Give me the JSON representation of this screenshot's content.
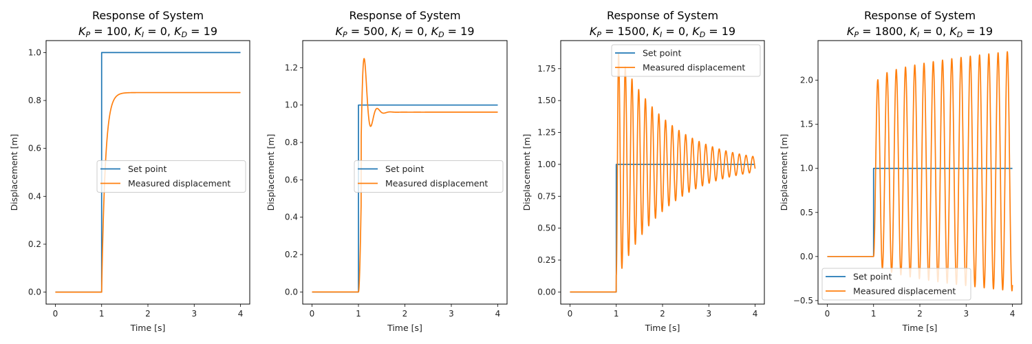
{
  "figure": {
    "colors": {
      "set_point": "#1f77b4",
      "measured": "#ff7f0e"
    }
  },
  "chart_data": [
    {
      "type": "line",
      "title": "Response of System",
      "subtitle": {
        "KP": "100",
        "KI": "0",
        "KD": "19"
      },
      "xlabel": "Time [s]",
      "ylabel": "Displacement [m]",
      "xlim": [
        -0.2,
        4.2
      ],
      "ylim": [
        -0.05,
        1.05
      ],
      "xticks": [
        0,
        1,
        2,
        3,
        4
      ],
      "xtick_labels": [
        "0",
        "1",
        "2",
        "3",
        "4"
      ],
      "yticks": [
        0.0,
        0.2,
        0.4,
        0.6,
        0.8,
        1.0
      ],
      "ytick_labels": [
        "0.0",
        "0.2",
        "0.4",
        "0.6",
        "0.8",
        "1.0"
      ],
      "legend": {
        "placement": "center-right",
        "entries": [
          "Set point",
          "Measured displacement"
        ]
      },
      "series": [
        {
          "name": "Set point",
          "kind": "step",
          "step_time": 1,
          "before": 0,
          "after": 1,
          "t_end": 4
        },
        {
          "name": "Measured displacement",
          "kind": "first_order",
          "step_time": 1,
          "final": 0.833,
          "time_constant": 0.08,
          "t_end": 4
        }
      ]
    },
    {
      "type": "line",
      "title": "Response of System",
      "subtitle": {
        "KP": "500",
        "KI": "0",
        "KD": "19"
      },
      "xlabel": "Time [s]",
      "ylabel": "Displacement [m]",
      "xlim": [
        -0.2,
        4.2
      ],
      "ylim": [
        -0.065,
        1.345
      ],
      "xticks": [
        0,
        1,
        2,
        3,
        4
      ],
      "xtick_labels": [
        "0",
        "1",
        "2",
        "3",
        "4"
      ],
      "yticks": [
        0.0,
        0.2,
        0.4,
        0.6,
        0.8,
        1.0,
        1.2
      ],
      "ytick_labels": [
        "0.0",
        "0.2",
        "0.4",
        "0.6",
        "0.8",
        "1.0",
        "1.2"
      ],
      "legend": {
        "placement": "center-right",
        "entries": [
          "Set point",
          "Measured displacement"
        ]
      },
      "series": [
        {
          "name": "Set point",
          "kind": "step",
          "step_time": 1,
          "before": 0,
          "after": 1,
          "t_end": 4
        },
        {
          "name": "Measured displacement",
          "kind": "damped",
          "step_time": 1,
          "final": 0.962,
          "peak": 1.28,
          "peak_time": 1.12,
          "period": 0.28,
          "decay": 9.5,
          "t_end": 4
        }
      ]
    },
    {
      "type": "line",
      "title": "Response of System",
      "subtitle": {
        "KP": "1500",
        "KI": "0",
        "KD": "19"
      },
      "xlabel": "Time [s]",
      "ylabel": "Displacement [m]",
      "xlim": [
        -0.2,
        4.2
      ],
      "ylim": [
        -0.095,
        1.97
      ],
      "xticks": [
        0,
        1,
        2,
        3,
        4
      ],
      "xtick_labels": [
        "0",
        "1",
        "2",
        "3",
        "4"
      ],
      "yticks": [
        0.0,
        0.25,
        0.5,
        0.75,
        1.0,
        1.25,
        1.5,
        1.75
      ],
      "ytick_labels": [
        "0.00",
        "0.25",
        "0.50",
        "0.75",
        "1.00",
        "1.25",
        "1.50",
        "1.75"
      ],
      "legend": {
        "placement": "upper-right",
        "entries": [
          "Set point",
          "Measured displacement"
        ]
      },
      "series": [
        {
          "name": "Set point",
          "kind": "step",
          "step_time": 1,
          "before": 0,
          "after": 1,
          "t_end": 4
        },
        {
          "name": "Measured displacement",
          "kind": "oscillating",
          "step_time": 1,
          "center": 1.0,
          "first_peak": 1.87,
          "first_peak_time": 1.05,
          "period": 0.145,
          "envelope_end": 0.06,
          "t_end": 4
        }
      ]
    },
    {
      "type": "line",
      "title": "Response of System",
      "subtitle": {
        "KP": "1800",
        "KI": "0",
        "KD": "19"
      },
      "xlabel": "Time [s]",
      "ylabel": "Displacement [m]",
      "xlim": [
        -0.2,
        4.2
      ],
      "ylim": [
        -0.54,
        2.45
      ],
      "xticks": [
        0,
        1,
        2,
        3,
        4
      ],
      "xtick_labels": [
        "0",
        "1",
        "2",
        "3",
        "4"
      ],
      "yticks": [
        -0.5,
        0.0,
        0.5,
        1.0,
        1.5,
        2.0
      ],
      "ytick_labels": [
        "−0.5",
        "0.0",
        "0.5",
        "1.0",
        "1.5",
        "2.0"
      ],
      "legend": {
        "placement": "lower-left",
        "entries": [
          "Set point",
          "Measured displacement"
        ]
      },
      "series": [
        {
          "name": "Set point",
          "kind": "step",
          "step_time": 1,
          "before": 0,
          "after": 1,
          "t_end": 4
        },
        {
          "name": "Measured displacement",
          "kind": "growing",
          "step_time": 1,
          "peaks_start": 2.0,
          "peaks_end": 2.33,
          "troughs_start": -0.08,
          "troughs_end": -0.39,
          "first_peak_time": 1.09,
          "period": 0.2,
          "t_end": 4,
          "final_value": 0.02
        }
      ]
    }
  ]
}
